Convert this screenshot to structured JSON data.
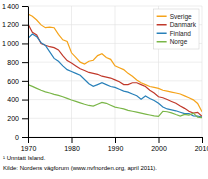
{
  "chart_data": {
    "type": "line",
    "x": [
      1970,
      1971,
      1972,
      1973,
      1974,
      1975,
      1976,
      1977,
      1978,
      1979,
      1980,
      1981,
      1982,
      1983,
      1984,
      1985,
      1986,
      1987,
      1988,
      1989,
      1990,
      1991,
      1992,
      1993,
      1994,
      1995,
      1996,
      1997,
      1998,
      1999,
      2000,
      2001,
      2002,
      2003,
      2004,
      2005,
      2006,
      2007,
      2008,
      2009,
      2010
    ],
    "series": [
      {
        "name": "Sverige",
        "color": "#f5a31a",
        "values": [
          1313,
          1290,
          1250,
          1198,
          1168,
          1174,
          1168,
          1096,
          1038,
          1020,
          900,
          850,
          800,
          780,
          810,
          820,
          870,
          890,
          850,
          830,
          760,
          740,
          720,
          680,
          650,
          610,
          580,
          560,
          540,
          530,
          520,
          500,
          490,
          480,
          470,
          460,
          440,
          420,
          397,
          358,
          270
        ]
      },
      {
        "name": "Danmark",
        "color": "#c0392b",
        "values": [
          1208,
          1118,
          1090,
          1000,
          980,
          965,
          955,
          930,
          870,
          816,
          790,
          760,
          730,
          710,
          690,
          680,
          670,
          650,
          640,
          630,
          610,
          590,
          560,
          560,
          580,
          580,
          560,
          540,
          500,
          470,
          430,
          420,
          400,
          380,
          360,
          331,
          306,
          275,
          255,
          263,
          220
        ]
      },
      {
        "name": "Finland",
        "color": "#2980b9",
        "values": [
          1055,
          1100,
          1072,
          1008,
          978,
          910,
          840,
          809,
          760,
          720,
          700,
          680,
          660,
          615,
          570,
          541,
          560,
          580,
          560,
          540,
          530,
          510,
          490,
          480,
          460,
          441,
          404,
          438,
          411,
          391,
          360,
          320,
          300,
          290,
          280,
          265,
          250,
          251,
          226,
          224,
          212
        ]
      },
      {
        "name": "Norge",
        "color": "#7ab648",
        "values": [
          560,
          541,
          520,
          500,
          483,
          470,
          455,
          444,
          430,
          413,
          395,
          380,
          365,
          350,
          337,
          330,
          350,
          370,
          360,
          340,
          320,
          310,
          300,
          285,
          275,
          265,
          255,
          245,
          235,
          225,
          220,
          275,
          270,
          258,
          240,
          224,
          242,
          233,
          255,
          212,
          208
        ]
      }
    ],
    "xlim": [
      1970,
      2010
    ],
    "xticks": [
      1970,
      1980,
      1990,
      2000,
      2010
    ],
    "ylim": [
      0,
      1400
    ],
    "yticks": [
      0,
      200,
      400,
      600,
      800,
      {
        "value": 1000,
        "label": "1 000"
      },
      {
        "value": 1200,
        "label": "1 200"
      },
      {
        "value": 1400,
        "label": "1 400"
      }
    ],
    "grid": true,
    "legend": "upper right",
    "annotations": [
      "¹ Unntatt Island.",
      "Kilde: Nordens vägforum (www.nvfnorden.org, april 2011)."
    ]
  }
}
